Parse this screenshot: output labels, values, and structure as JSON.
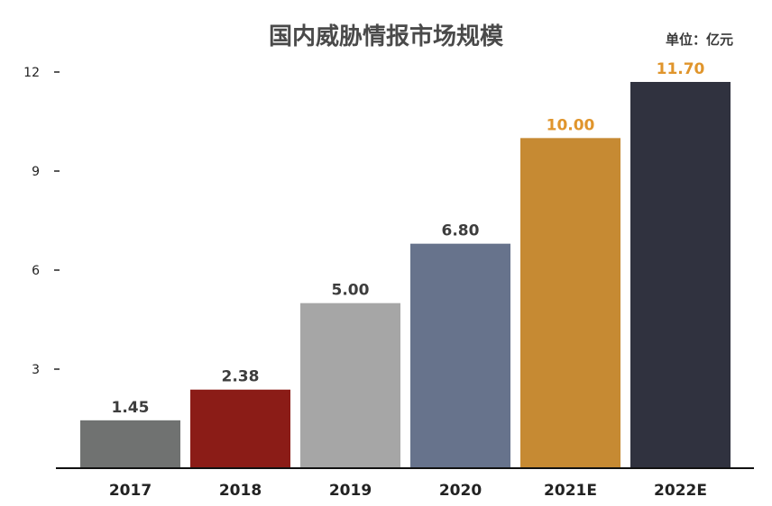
{
  "chart_data": {
    "type": "bar",
    "title": "国内威胁情报市场规模",
    "unit_label": "单位：亿元",
    "categories": [
      "2017",
      "2018",
      "2019",
      "2020",
      "2021E",
      "2022E"
    ],
    "values": [
      1.45,
      2.38,
      5.0,
      6.8,
      10.0,
      11.7
    ],
    "value_labels": [
      "1.45",
      "2.38",
      "5.00",
      "6.80",
      "10.00",
      "11.70"
    ],
    "bar_colors": [
      "#707271",
      "#8b1c17",
      "#a6a6a6",
      "#67738c",
      "#c68a33",
      "#30323f"
    ],
    "label_colors": [
      "#3d3d3d",
      "#3d3d3d",
      "#3d3d3d",
      "#3d3d3d",
      "#e0952c",
      "#e0952c"
    ],
    "yticks": [
      3,
      6,
      9,
      12
    ],
    "ylim": [
      0,
      12
    ],
    "grid": false,
    "legend": "none"
  }
}
